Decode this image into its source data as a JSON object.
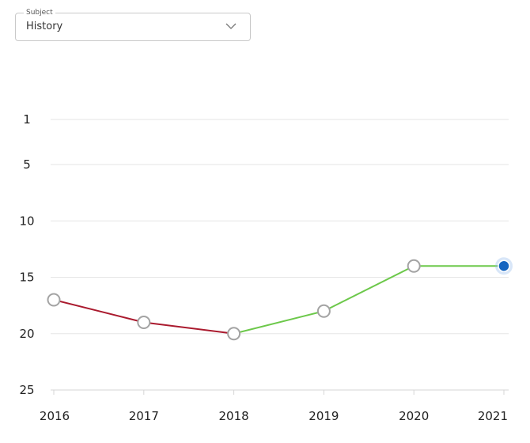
{
  "subject_select": {
    "label": "Subject",
    "value": "History",
    "chevron_icon": "chevron-down-icon"
  },
  "chart_data": {
    "type": "line",
    "x": [
      "2016",
      "2017",
      "2018",
      "2019",
      "2020",
      "2021"
    ],
    "values": [
      17,
      19,
      20,
      18,
      14,
      14
    ],
    "y_ticks": [
      1,
      5,
      10,
      15,
      20,
      25
    ],
    "ylim": [
      1,
      25
    ],
    "y_inverted": true,
    "grid": true,
    "legend": "none",
    "colors": {
      "decline": "#aa1a2e",
      "improve": "#6cc84a",
      "grid": "#e6e6e6",
      "axis": "#d5d5d5",
      "point_stroke": "#a3a3a3",
      "point_fill": "#ffffff",
      "highlight": "#1565c0",
      "highlight_glow": "#90b8ec"
    },
    "highlight_index": 5
  }
}
